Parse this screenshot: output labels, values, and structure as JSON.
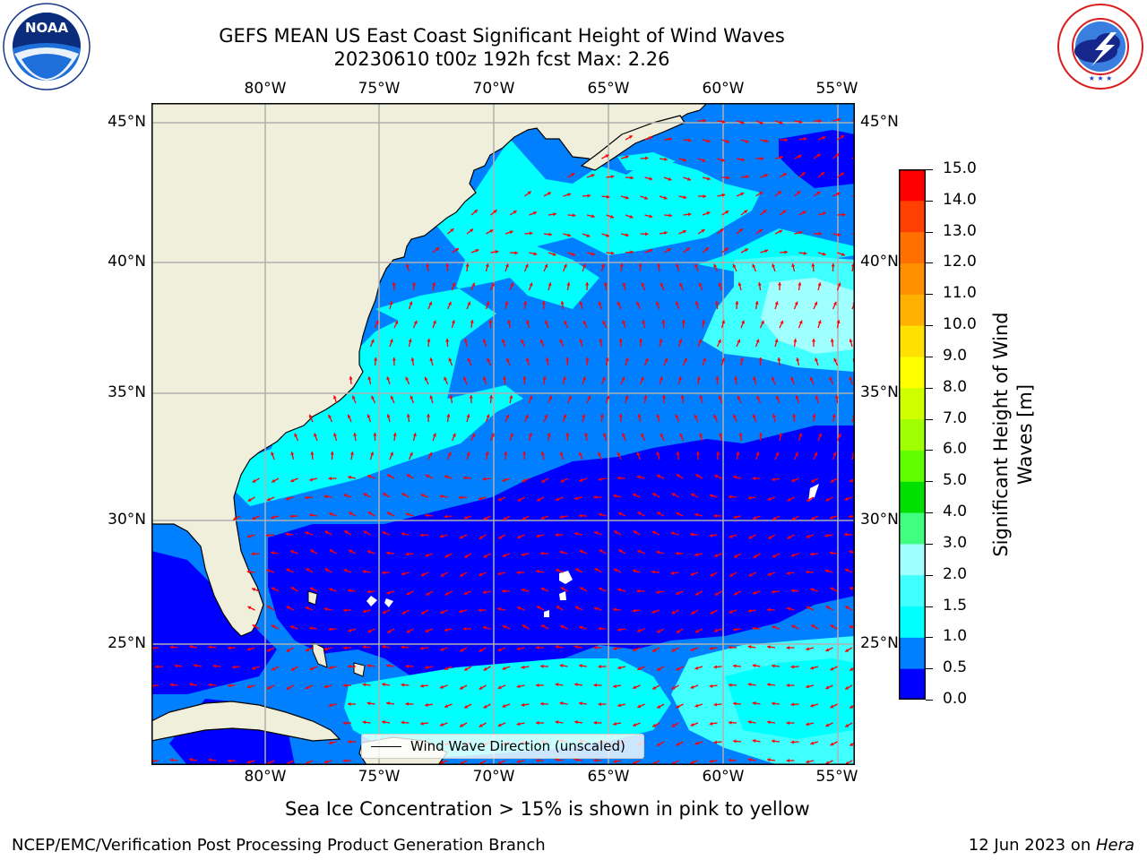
{
  "title_line1": "GEFS MEAN US East Coast Significant Height of Wind Waves",
  "title_line2": "20230610 t00z 192h fcst   Max: 2.26",
  "logos": {
    "left": {
      "icon": "noaa-logo",
      "text": "NOAA"
    },
    "right": {
      "icon": "nws-logo",
      "ring_text": "NATIONAL WEATHER SERVICE"
    }
  },
  "map": {
    "lon_labels": [
      "80°W",
      "75°W",
      "70°W",
      "65°W",
      "60°W",
      "55°W"
    ],
    "lat_labels": [
      "45°N",
      "40°N",
      "35°N",
      "30°N",
      "25°N"
    ],
    "colors": {
      "land": "#efefdc",
      "grid": "#b0b0b0",
      "arrows": "#ff0000",
      "coast": "#000000"
    },
    "legend_text": "Wind Wave Direction (unscaled)"
  },
  "colorbar": {
    "label": "Significant Height of Wind Waves [m]",
    "ticks": [
      "15.0",
      "14.0",
      "13.0",
      "12.0",
      "11.0",
      "10.0",
      "9.0",
      "8.0",
      "7.0",
      "6.0",
      "5.0",
      "4.0",
      "3.0",
      "2.0",
      "1.5",
      "1.0",
      "0.5",
      "0.0"
    ],
    "colors": [
      "#0000ff",
      "#0080ff",
      "#00ffff",
      "#40ffff",
      "#a0ffff",
      "#40ff80",
      "#00e000",
      "#60ff00",
      "#a0ff00",
      "#d0ff00",
      "#ffff00",
      "#ffe000",
      "#ffb000",
      "#ff9000",
      "#ff7000",
      "#ff4000",
      "#ff0000"
    ]
  },
  "note": "Sea Ice Concentration > 15% is shown in pink to yellow",
  "footer": {
    "left": "NCEP/EMC/Verification Post Processing Product Generation Branch",
    "right_date": "12 Jun 2023 on ",
    "right_machine": "Hera"
  }
}
